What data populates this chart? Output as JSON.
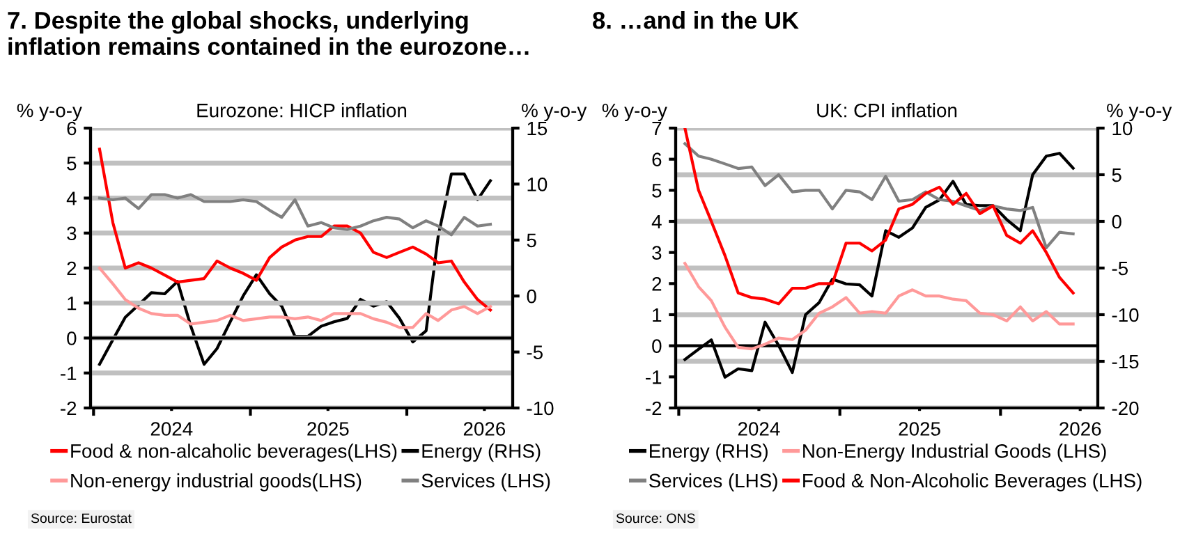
{
  "chart_data": [
    {
      "type": "line",
      "title": "7. Despite the global shocks, underlying\ninflation remains contained in the eurozone…",
      "subtitle": "Eurozone: HICP inflation",
      "ylabel": "% y-o-y",
      "y2label": "% y-o-y",
      "x": [
        "2024-01-15",
        "2024-02-15",
        "2024-03-15",
        "2024-04-15",
        "2024-05-15",
        "2024-06-15",
        "2024-07-15",
        "2024-08-15",
        "2024-09-15",
        "2024-10-15",
        "2024-11-15",
        "2024-12-15",
        "2025-01-15",
        "2025-02-15",
        "2025-03-15",
        "2025-04-15",
        "2025-05-15",
        "2025-06-15",
        "2025-07-15",
        "2025-08-15",
        "2025-09-15",
        "2025-10-15",
        "2025-11-15",
        "2025-12-15",
        "2026-01-15",
        "2026-02-15",
        "2026-03-15",
        "2026-04-15",
        "2026-05-15",
        "2026-06-15",
        "2026-07-15"
      ],
      "xlim": [
        "2023-12-25",
        "2026-09-05"
      ],
      "xticks": [
        {
          "value": "2024-01-01",
          "label": null
        },
        {
          "value": "2024-07-01",
          "label": "2024"
        },
        {
          "value": "2025-01-01",
          "label": null
        },
        {
          "value": "2025-07-01",
          "label": "2025"
        },
        {
          "value": "2026-01-01",
          "label": null
        },
        {
          "value": "2026-07-01",
          "label": "2026"
        }
      ],
      "ylim": [
        -2,
        6
      ],
      "yticks": [
        -2,
        -1,
        0,
        1,
        2,
        3,
        4,
        5,
        6
      ],
      "y2lim": [
        -10,
        15
      ],
      "y2ticks": [
        -10,
        -5,
        0,
        5,
        10,
        15
      ],
      "grid": "y",
      "legend": "bottom",
      "line_style": "solid",
      "marker": "none",
      "ref_lines": [
        {
          "axis": "y",
          "value": 0,
          "color": "#000000"
        }
      ],
      "series": [
        {
          "name": "Food & non-alcaholic beverages(LHS)",
          "color": "#ff0000",
          "values": [
            5.4,
            3.3,
            2.0,
            2.15,
            2.0,
            1.8,
            1.6,
            1.65,
            1.7,
            2.2,
            2.0,
            1.85,
            1.65,
            2.3,
            2.6,
            2.8,
            2.9,
            2.9,
            3.2,
            3.2,
            3.0,
            2.45,
            2.3,
            2.45,
            2.6,
            2.4,
            2.15,
            2.2,
            1.6,
            1.1,
            0.8
          ]
        },
        {
          "name": "Energy (RHS)",
          "color": "#000000",
          "axis": "y2",
          "values": [
            -6.1,
            -3.9,
            -1.9,
            -0.8,
            0.3,
            0.2,
            1.3,
            -2.7,
            -6.1,
            -4.7,
            -2.3,
            0.0,
            1.9,
            0.2,
            -0.9,
            -3.6,
            -3.6,
            -2.7,
            -2.3,
            -2.0,
            -0.3,
            -0.9,
            -0.5,
            -2.0,
            -4.1,
            -3.1,
            5.3,
            10.9,
            10.9,
            8.6,
            10.3
          ]
        },
        {
          "name": "Non-energy industrial goods(LHS)",
          "color": "#ff9999",
          "values": [
            2.0,
            1.55,
            1.1,
            0.85,
            0.7,
            0.65,
            0.65,
            0.4,
            0.45,
            0.5,
            0.65,
            0.5,
            0.55,
            0.6,
            0.6,
            0.55,
            0.6,
            0.5,
            0.7,
            0.7,
            0.7,
            0.55,
            0.45,
            0.3,
            0.3,
            0.7,
            0.5,
            0.8,
            0.9,
            0.7,
            0.9
          ]
        },
        {
          "name": "Services (LHS)",
          "color": "#808080",
          "values": [
            4.0,
            3.95,
            4.0,
            3.7,
            4.1,
            4.1,
            4.0,
            4.1,
            3.9,
            3.9,
            3.9,
            3.95,
            3.9,
            3.65,
            3.45,
            3.95,
            3.2,
            3.3,
            3.15,
            3.1,
            3.2,
            3.35,
            3.45,
            3.4,
            3.15,
            3.35,
            3.2,
            2.95,
            3.45,
            3.2,
            3.25
          ]
        }
      ],
      "annotations": [
        "Source: Eurostat"
      ]
    },
    {
      "type": "line",
      "title": "8. …and in the UK",
      "subtitle": "UK: CPI inflation",
      "ylabel": "% y-o-y",
      "y2label": "% y-o-y",
      "x": [
        "2024-01-15",
        "2024-02-15",
        "2024-03-15",
        "2024-04-15",
        "2024-05-15",
        "2024-06-15",
        "2024-07-15",
        "2024-08-15",
        "2024-09-15",
        "2024-10-15",
        "2024-11-15",
        "2024-12-15",
        "2025-01-15",
        "2025-02-15",
        "2025-03-15",
        "2025-04-15",
        "2025-05-15",
        "2025-06-15",
        "2025-07-15",
        "2025-08-15",
        "2025-09-15",
        "2025-10-15",
        "2025-11-15",
        "2025-12-15",
        "2026-01-15",
        "2026-02-15",
        "2026-03-15",
        "2026-04-15",
        "2026-05-15",
        "2026-06-15"
      ],
      "xlim": [
        "2023-12-25",
        "2026-08-10"
      ],
      "xticks": [
        {
          "value": "2024-01-01",
          "label": null
        },
        {
          "value": "2024-07-01",
          "label": "2024"
        },
        {
          "value": "2025-01-01",
          "label": null
        },
        {
          "value": "2025-07-01",
          "label": "2025"
        },
        {
          "value": "2026-01-01",
          "label": null
        },
        {
          "value": "2026-07-01",
          "label": "2026"
        }
      ],
      "ylim": [
        -2,
        7
      ],
      "yticks": [
        -2,
        -1,
        0,
        1,
        2,
        3,
        4,
        5,
        6,
        7
      ],
      "y2lim": [
        -20,
        10
      ],
      "y2ticks": [
        -20,
        -15,
        -10,
        -5,
        0,
        5,
        10
      ],
      "grid": "y2",
      "legend": "bottom",
      "line_style": "solid",
      "marker": "none",
      "ref_lines": [
        {
          "axis": "y",
          "value": 0,
          "color": "#000000"
        }
      ],
      "series": [
        {
          "name": "Energy (RHS)",
          "color": "#000000",
          "axis": "y2",
          "values": [
            -14.8,
            -13.7,
            -12.7,
            -16.7,
            -15.8,
            -16.0,
            -10.8,
            -13.3,
            -16.2,
            -10.0,
            -8.7,
            -6.2,
            -6.7,
            -6.8,
            -8.0,
            -1.0,
            -1.7,
            -0.7,
            1.5,
            2.3,
            4.3,
            1.8,
            1.7,
            1.7,
            0.2,
            -1.0,
            5.0,
            7.0,
            7.3,
            5.7
          ]
        },
        {
          "name": "Non-Energy Industrial Goods (LHS)",
          "color": "#ff9999",
          "values": [
            2.65,
            1.9,
            1.45,
            0.6,
            -0.05,
            -0.1,
            0.05,
            0.25,
            0.2,
            0.5,
            1.05,
            1.25,
            1.55,
            1.05,
            1.1,
            1.05,
            1.6,
            1.8,
            1.6,
            1.6,
            1.5,
            1.45,
            1.05,
            1.0,
            0.8,
            1.25,
            0.8,
            1.1,
            0.7,
            0.7
          ]
        },
        {
          "name": "Services (LHS)",
          "color": "#808080",
          "values": [
            6.5,
            6.1,
            6.0,
            5.85,
            5.7,
            5.75,
            5.15,
            5.5,
            4.95,
            5.0,
            5.0,
            4.4,
            5.0,
            4.95,
            4.7,
            5.45,
            4.65,
            4.7,
            4.95,
            4.7,
            4.65,
            4.5,
            4.35,
            4.5,
            4.4,
            4.35,
            4.45,
            3.15,
            3.65,
            3.6
          ]
        },
        {
          "name": "Food & Non-Alcoholic Beverages (LHS)",
          "color": "#ff0000",
          "values": [
            7.0,
            5.0,
            4.0,
            2.9,
            1.7,
            1.55,
            1.5,
            1.35,
            1.85,
            1.85,
            2.0,
            2.0,
            3.3,
            3.3,
            3.05,
            3.4,
            4.4,
            4.55,
            4.9,
            5.1,
            4.55,
            4.9,
            4.25,
            4.5,
            3.55,
            3.3,
            3.7,
            3.0,
            2.2,
            1.7
          ]
        }
      ],
      "annotations": [
        "Source: ONS"
      ]
    }
  ]
}
